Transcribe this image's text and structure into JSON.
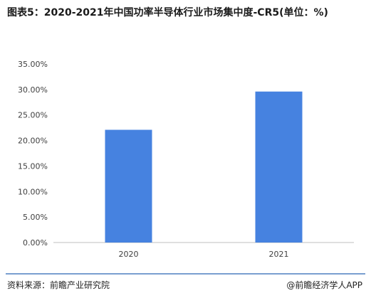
{
  "title": "图表5：2020-2021年中国功率半导体行业市场集中度-CR5(单位：%)",
  "chart_data": {
    "type": "bar",
    "title": "图表5：2020-2021年中国功率半导体行业市场集中度-CR5(单位：%)",
    "categories": [
      "2020",
      "2021"
    ],
    "values": [
      22.1,
      29.6
    ],
    "unit": "%",
    "ylim": [
      0,
      35
    ],
    "yticks": [
      "0.00%",
      "5.00%",
      "10.00%",
      "15.00%",
      "20.00%",
      "25.00%",
      "30.00%",
      "35.00%"
    ],
    "grid": false,
    "legend": "none",
    "bar_color": "#4682e0",
    "xlabel": "",
    "ylabel": ""
  },
  "footer": {
    "source": "资料来源：前瞻产业研究院",
    "brand": "@前瞻经济学人APP"
  }
}
